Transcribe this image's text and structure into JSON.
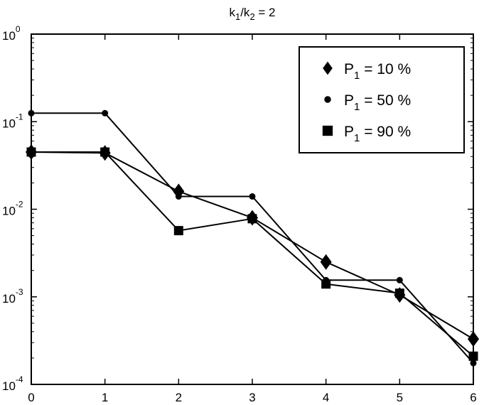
{
  "chart_data": {
    "type": "line",
    "title": {
      "base": "k",
      "sub1": "1",
      "mid": "/k",
      "sub2": "2",
      "rest": " = 2"
    },
    "xlabel": "",
    "ylabel": "",
    "xlim": [
      0,
      6
    ],
    "ylim": [
      0.0001,
      1
    ],
    "yscale": "log",
    "x_ticks": [
      "0",
      "1",
      "2",
      "3",
      "4",
      "5",
      "6"
    ],
    "y_ticks": [
      {
        "value": 1,
        "base": "10",
        "exp": "0"
      },
      {
        "value": 0.1,
        "base": "10",
        "exp": "-1"
      },
      {
        "value": 0.01,
        "base": "10",
        "exp": "-2"
      },
      {
        "value": 0.001,
        "base": "10",
        "exp": "-3"
      },
      {
        "value": 0.0001,
        "base": "10",
        "exp": "-4"
      }
    ],
    "grid": false,
    "legend_position": "top-right",
    "series": [
      {
        "name": {
          "base": "P",
          "sub": "1",
          "rest": " = 10 %"
        },
        "marker": "diamond",
        "x": [
          0,
          1,
          2,
          3,
          4,
          5,
          6
        ],
        "y": [
          0.045,
          0.044,
          0.016,
          0.008,
          0.0025,
          0.00105,
          0.00033
        ]
      },
      {
        "name": {
          "base": "P",
          "sub": "1",
          "rest": " = 50 %"
        },
        "marker": "circle",
        "x": [
          0,
          1,
          2,
          3,
          4,
          5,
          6
        ],
        "y": [
          0.125,
          0.125,
          0.014,
          0.014,
          0.00155,
          0.00155,
          0.000175
        ]
      },
      {
        "name": {
          "base": "P",
          "sub": "1",
          "rest": " = 90 %"
        },
        "marker": "square",
        "x": [
          0,
          1,
          2,
          3,
          4,
          5,
          6
        ],
        "y": [
          0.045,
          0.045,
          0.0057,
          0.0078,
          0.0014,
          0.0011,
          0.00021
        ]
      }
    ],
    "colors": {
      "line": "#000000",
      "marker": "#000000",
      "background": "#ffffff"
    }
  }
}
